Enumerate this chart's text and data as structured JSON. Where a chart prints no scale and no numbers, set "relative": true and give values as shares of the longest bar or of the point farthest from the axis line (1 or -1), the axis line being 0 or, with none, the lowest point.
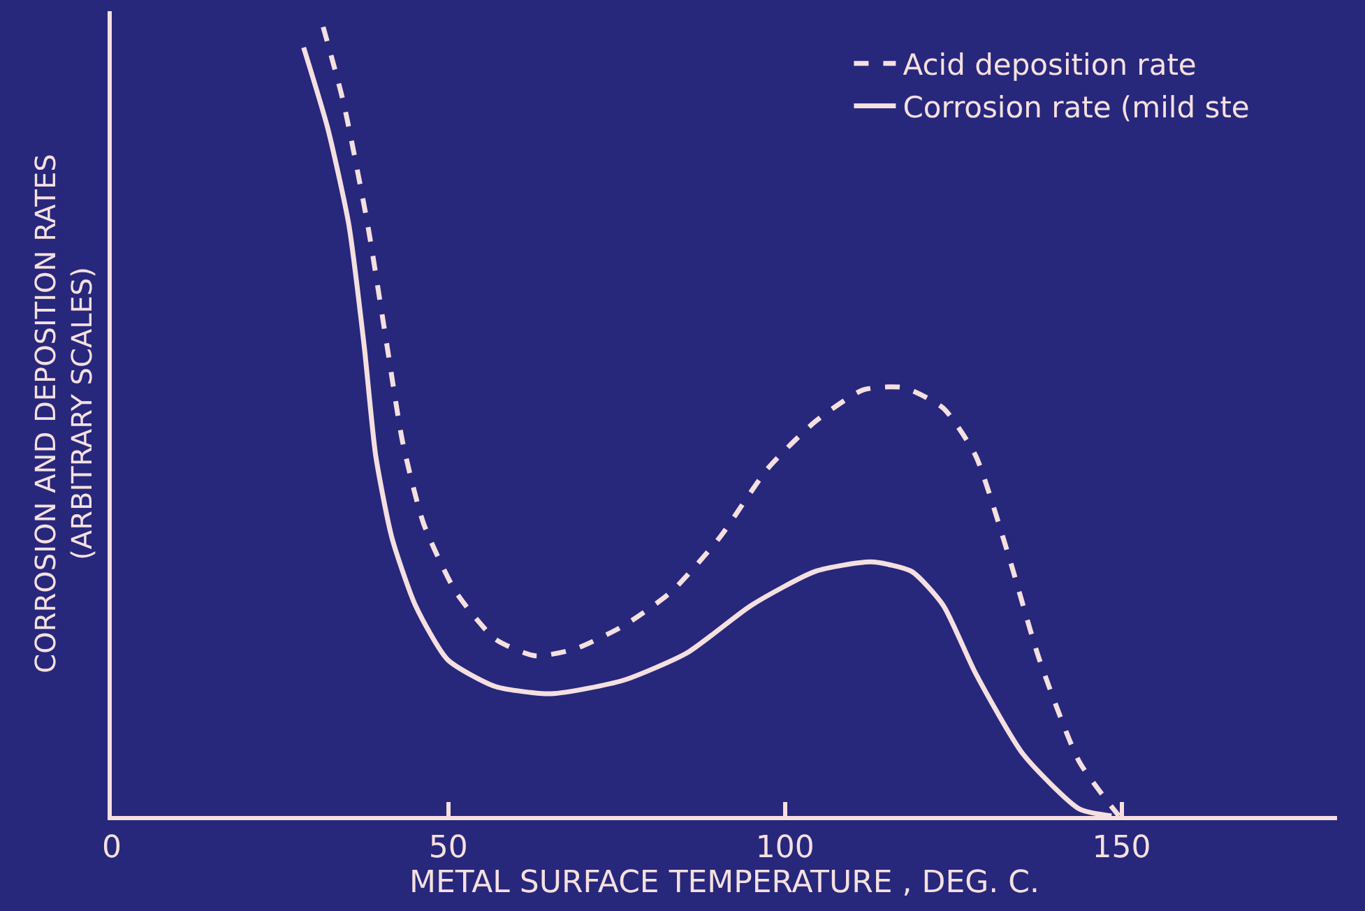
{
  "chart_data": {
    "type": "line",
    "xlabel": "METAL SURFACE TEMPERATURE , DEG. C.",
    "ylabel": "CORROSION AND DEPOSITION RATES\n(ARBITRARY SCALES)",
    "relative": true,
    "xlim": [
      0,
      182
    ],
    "xticks": [
      0,
      50,
      100,
      150
    ],
    "legend": "top right",
    "marker": "none",
    "series": [
      {
        "name": "Acid deposition rate",
        "color": "#f5e0e0",
        "line_style": "dashed",
        "x": [
          31.4,
          34.4,
          38.0,
          40.9,
          43.2,
          46.3,
          51.1,
          57.0,
          62.9,
          68.9,
          76.0,
          83.1,
          90.3,
          97.4,
          104.5,
          111.6,
          117.6,
          123.5,
          128.3,
          133.0,
          137.8,
          143.7,
          149.6
        ],
        "values": [
          1.0,
          0.905,
          0.75,
          0.595,
          0.474,
          0.371,
          0.284,
          0.224,
          0.203,
          0.212,
          0.241,
          0.284,
          0.353,
          0.44,
          0.5,
          0.54,
          0.543,
          0.517,
          0.457,
          0.336,
          0.198,
          0.069,
          0
        ]
      },
      {
        "name": "Corrosion rate (mild ste",
        "color": "#f5e0e0",
        "line_style": "solid",
        "x": [
          28.5,
          32.1,
          35.2,
          37.5,
          39.2,
          41.6,
          45.1,
          49.9,
          57.0,
          65.3,
          76.0,
          85.5,
          95.0,
          104.5,
          112.8,
          118.8,
          123.5,
          128.3,
          135.4,
          143.7,
          148.5
        ],
        "values": [
          0.974,
          0.871,
          0.75,
          0.595,
          0.457,
          0.353,
          0.267,
          0.198,
          0.164,
          0.155,
          0.172,
          0.207,
          0.267,
          0.31,
          0.322,
          0.31,
          0.267,
          0.181,
          0.078,
          0.009,
          0
        ]
      }
    ]
  }
}
